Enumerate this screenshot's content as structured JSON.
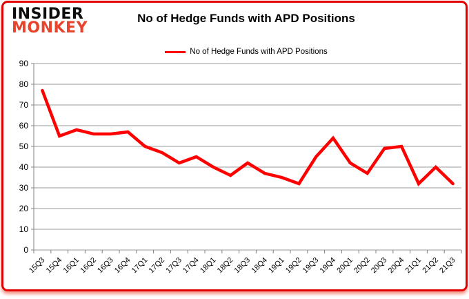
{
  "brand": {
    "line1": "INSIDER",
    "line2": "MONKEY"
  },
  "header": {
    "title": "No of Hedge Funds with APD Positions"
  },
  "legend": {
    "label": "No of Hedge Funds with APD Positions"
  },
  "colors": {
    "line": "#ff0000",
    "logo_accent": "#e8432d",
    "border": "#e20000",
    "gridline": "#9a9a9a",
    "axis": "#808080",
    "text": "#000000"
  },
  "chart_data": {
    "type": "line",
    "title": "No of Hedge Funds with APD Positions",
    "xlabel": "",
    "ylabel": "",
    "ylim": [
      0,
      90
    ],
    "ytick_step": 10,
    "grid": true,
    "legend_position": "top",
    "categories": [
      "15Q3",
      "15Q4",
      "16Q1",
      "16Q2",
      "16Q3",
      "16Q4",
      "17Q1",
      "17Q2",
      "17Q3",
      "17Q4",
      "18Q1",
      "18Q2",
      "18Q3",
      "18Q4",
      "19Q1",
      "19Q2",
      "19Q3",
      "19Q4",
      "20Q1",
      "20Q2",
      "20Q3",
      "20Q4",
      "21Q1",
      "21Q2",
      "21Q3"
    ],
    "series": [
      {
        "name": "No of Hedge Funds with APD Positions",
        "color": "#ff0000",
        "values": [
          77,
          55,
          58,
          56,
          56,
          57,
          50,
          47,
          42,
          45,
          40,
          36,
          42,
          37,
          35,
          32,
          45,
          54,
          42,
          37,
          49,
          50,
          32,
          40,
          32
        ]
      }
    ]
  }
}
